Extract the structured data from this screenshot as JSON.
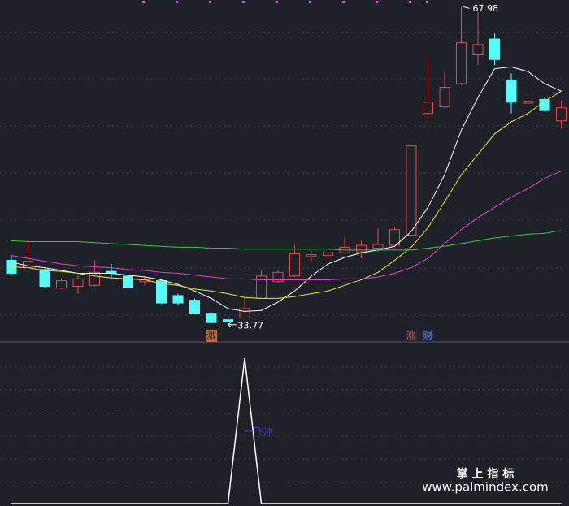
{
  "chart_data": [
    {
      "type": "candlestick",
      "open": [
        40.7,
        39.9,
        39.7,
        37.7,
        37.9,
        38.0,
        39.5,
        39.0,
        38.4,
        38.5,
        36.9,
        36.4,
        35.0,
        34.3,
        34.5,
        36.6,
        38.4,
        39.0,
        41.1,
        41.2,
        41.5,
        41.6,
        42.0,
        42.3,
        43.4,
        56.5,
        57.2,
        59.7,
        62.8,
        64.5,
        60.1,
        57.6,
        58.0,
        55.7
      ],
      "close": [
        39.3,
        40.6,
        37.9,
        38.5,
        38.7,
        39.4,
        39.3,
        37.8,
        38.6,
        36.1,
        36.1,
        35.0,
        34.0,
        34.1,
        35.5,
        39.0,
        39.4,
        41.4,
        41.3,
        41.5,
        42.1,
        42.3,
        42.4,
        44.0,
        53.0,
        57.7,
        59.3,
        64.1,
        63.9,
        62.3,
        57.7,
        57.8,
        56.8,
        57.1
      ],
      "high": [
        41.3,
        42.8,
        39.8,
        38.7,
        39.2,
        40.7,
        40.3,
        39.2,
        39.0,
        38.7,
        37.1,
        36.6,
        35.1,
        34.8,
        36.7,
        39.7,
        39.6,
        42.3,
        41.8,
        42.0,
        43.2,
        42.8,
        44.1,
        44.3,
        53.1,
        62.4,
        61.0,
        67.98,
        67.4,
        65.1,
        60.8,
        58.5,
        58.3,
        57.9
      ],
      "low": [
        39.0,
        39.7,
        37.7,
        37.6,
        37.1,
        37.9,
        38.6,
        37.7,
        38.0,
        36.0,
        35.9,
        34.9,
        33.9,
        33.77,
        34.4,
        36.6,
        38.3,
        38.9,
        40.6,
        41.0,
        41.4,
        40.9,
        41.6,
        42.1,
        43.3,
        55.8,
        57.0,
        59.5,
        61.7,
        61.7,
        56.5,
        56.9,
        56.7,
        54.9
      ],
      "up_color": "#e8464a",
      "down_color": "#54fcfc",
      "ylim": [
        32.0,
        68.7
      ],
      "lines": [
        {
          "color": "#ffffff",
          "values": [
            40.5,
            40.1,
            39.9,
            39.6,
            39.3,
            39.3,
            39.3,
            39.1,
            38.9,
            38.6,
            38.1,
            37.4,
            36.6,
            35.5,
            35.2,
            35.3,
            36.2,
            37.4,
            39.0,
            40.3,
            41.0,
            41.5,
            41.8,
            42.2,
            43.8,
            46.4,
            49.9,
            54.7,
            58.2,
            61.3,
            61.5,
            61.0,
            59.7,
            58.9
          ]
        },
        {
          "color": "#e8e83a",
          "values": [
            40.0,
            39.9,
            39.6,
            39.5,
            39.3,
            39.0,
            38.8,
            38.7,
            38.6,
            38.2,
            38.0,
            37.6,
            37.4,
            37.1,
            36.7,
            36.6,
            36.6,
            36.8,
            37.1,
            37.4,
            38.0,
            38.6,
            39.4,
            40.7,
            42.1,
            44.2,
            47.0,
            49.9,
            52.1,
            54.3,
            55.6,
            56.5,
            57.8,
            58.9
          ]
        },
        {
          "color": "#e040e0",
          "values": [
            41.2,
            40.9,
            40.6,
            40.3,
            40.1,
            40.0,
            39.9,
            39.7,
            39.6,
            39.4,
            39.3,
            39.1,
            38.9,
            38.7,
            38.7,
            38.6,
            38.6,
            38.6,
            38.6,
            38.6,
            38.7,
            38.7,
            38.9,
            39.3,
            39.9,
            40.9,
            42.5,
            44.0,
            45.3,
            46.4,
            47.5,
            48.4,
            49.5,
            50.3
          ]
        },
        {
          "color": "#2ecc40",
          "values": [
            42.8,
            42.7,
            42.7,
            42.7,
            42.7,
            42.6,
            42.5,
            42.4,
            42.3,
            42.2,
            42.1,
            42.1,
            42.0,
            42.0,
            41.9,
            41.9,
            41.9,
            41.9,
            41.9,
            41.9,
            41.8,
            41.8,
            41.8,
            41.8,
            41.8,
            42.0,
            42.2,
            42.5,
            42.8,
            43.1,
            43.3,
            43.5,
            43.6,
            43.9
          ]
        }
      ],
      "signals": [
        null,
        null,
        null,
        null,
        null,
        null,
        null,
        null,
        null,
        null,
        null,
        null,
        "激",
        null,
        null,
        null,
        null,
        null,
        null,
        null,
        null,
        null,
        null,
        null,
        "涨",
        "财",
        null,
        null,
        null,
        null,
        null,
        null,
        null,
        null
      ],
      "signal_colors": [
        null,
        null,
        null,
        null,
        null,
        null,
        null,
        null,
        null,
        null,
        null,
        null,
        "#c86a3a",
        null,
        null,
        null,
        null,
        null,
        null,
        null,
        null,
        null,
        null,
        null,
        "#e8464a",
        "#4a7cff",
        null,
        null,
        null,
        null,
        null,
        null,
        null,
        null
      ]
    },
    {
      "type": "line",
      "values": [
        0,
        0,
        0,
        0,
        0,
        0,
        0,
        0,
        0,
        0,
        0,
        0,
        0,
        0,
        1,
        0,
        0,
        0,
        0,
        0,
        0,
        0,
        0,
        0,
        0,
        0,
        0,
        0,
        0,
        0,
        0,
        0,
        0,
        0
      ],
      "color": "#ffffff",
      "ylim": [
        0,
        1.1
      ],
      "annotation": "一飞冲"
    }
  ],
  "watermark": {
    "title": "掌 上 指 标",
    "url": "www.palmindex.com"
  }
}
